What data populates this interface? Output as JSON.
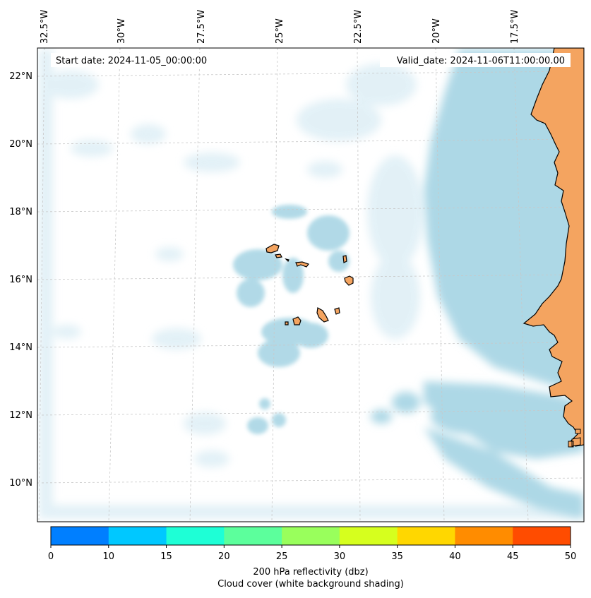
{
  "header": {
    "start_date": "Start date: 2024-11-05_00:00:00",
    "valid_date": "Valid_date: 2024-11-06T11:00:00.00"
  },
  "longitude_labels": [
    "32.5°W",
    "30°W",
    "27.5°W",
    "25°W",
    "22.5°W",
    "20°W",
    "17.5°W"
  ],
  "latitude_labels": [
    "22°N",
    "20°N",
    "18°N",
    "16°N",
    "14°N",
    "12°N",
    "10°N"
  ],
  "colorbar": {
    "ticks": [
      "0",
      "10",
      "15",
      "20",
      "25",
      "30",
      "35",
      "40",
      "45",
      "50"
    ],
    "colors": [
      "#007fff",
      "#00c8ff",
      "#1effd6",
      "#5cff9c",
      "#99ff5c",
      "#d6ff1e",
      "#ffd700",
      "#ff8c00",
      "#ff4c00"
    ],
    "label": "200 hPa reflectivity (dbz)",
    "sublabel": "Cloud cover (white background shading)"
  },
  "colors": {
    "land": "#f4a460",
    "cloud": "#add8e6",
    "gridline": "#c8c8c8"
  }
}
